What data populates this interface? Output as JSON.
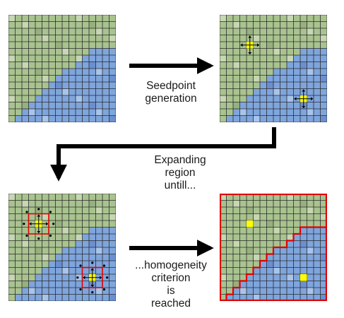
{
  "steps": [
    {
      "id": "seed",
      "lines": [
        "Seedpoint",
        "generation"
      ]
    },
    {
      "id": "expand",
      "lines": [
        "Expanding",
        "region",
        "untill..."
      ]
    },
    {
      "id": "criterion",
      "lines": [
        "...homogeneity",
        "criterion",
        "is",
        "reached"
      ]
    }
  ],
  "colors": {
    "region_a": "#a9c38f",
    "region_b": "#7fa5dd",
    "grid_line": "#2b2b2b",
    "seed": "#ffff00",
    "boundary": "#e00000",
    "arrow": "#000000"
  }
}
